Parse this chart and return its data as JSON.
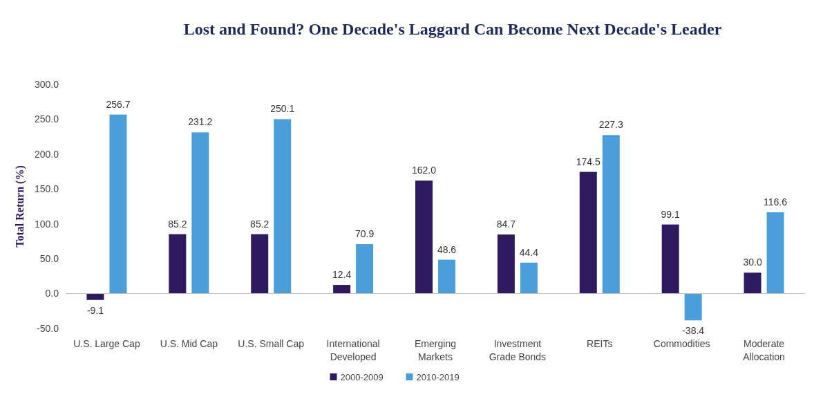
{
  "chart_data": {
    "type": "bar",
    "title": "Lost and Found? One Decade's Laggard Can Become Next Decade's Leader",
    "ylabel": "Total Return (%)",
    "categories": [
      "U.S. Large Cap",
      "U.S. Mid Cap",
      "U.S. Small Cap",
      "International Developed",
      "Emerging Markets",
      "Investment Grade Bonds",
      "REITs",
      "Commodities",
      "Moderate Allocation"
    ],
    "series": [
      {
        "name": "2000-2009",
        "color": "#2e1a5e",
        "values": [
          -9.1,
          85.2,
          85.2,
          12.4,
          162.0,
          84.7,
          174.5,
          99.1,
          30.0
        ],
        "value_labels": [
          "-9.1",
          "85.2",
          "85.2",
          "12.4",
          "162.0",
          "84.7",
          "174.5",
          "99.1",
          "30.0"
        ]
      },
      {
        "name": "2010-2019",
        "color": "#4a9fdb",
        "values": [
          256.7,
          231.2,
          250.1,
          70.9,
          48.6,
          44.4,
          227.3,
          -38.4,
          116.6
        ],
        "value_labels": [
          "256.7",
          "231.2",
          "250.1",
          "70.9",
          "48.6",
          "44.4",
          "227.3",
          "-38.4",
          "116.6"
        ]
      }
    ],
    "ylim": [
      -50,
      300
    ],
    "yticks": [
      {
        "value": -50,
        "label": "-50.0"
      },
      {
        "value": 0,
        "label": "0.0"
      },
      {
        "value": 50,
        "label": "50.0"
      },
      {
        "value": 100,
        "label": "100.0"
      },
      {
        "value": 150,
        "label": "150.0"
      },
      {
        "value": 200,
        "label": "200.0"
      },
      {
        "value": 250,
        "label": "250.0"
      },
      {
        "value": 300,
        "label": "300.0"
      }
    ],
    "legend": "bottom"
  }
}
